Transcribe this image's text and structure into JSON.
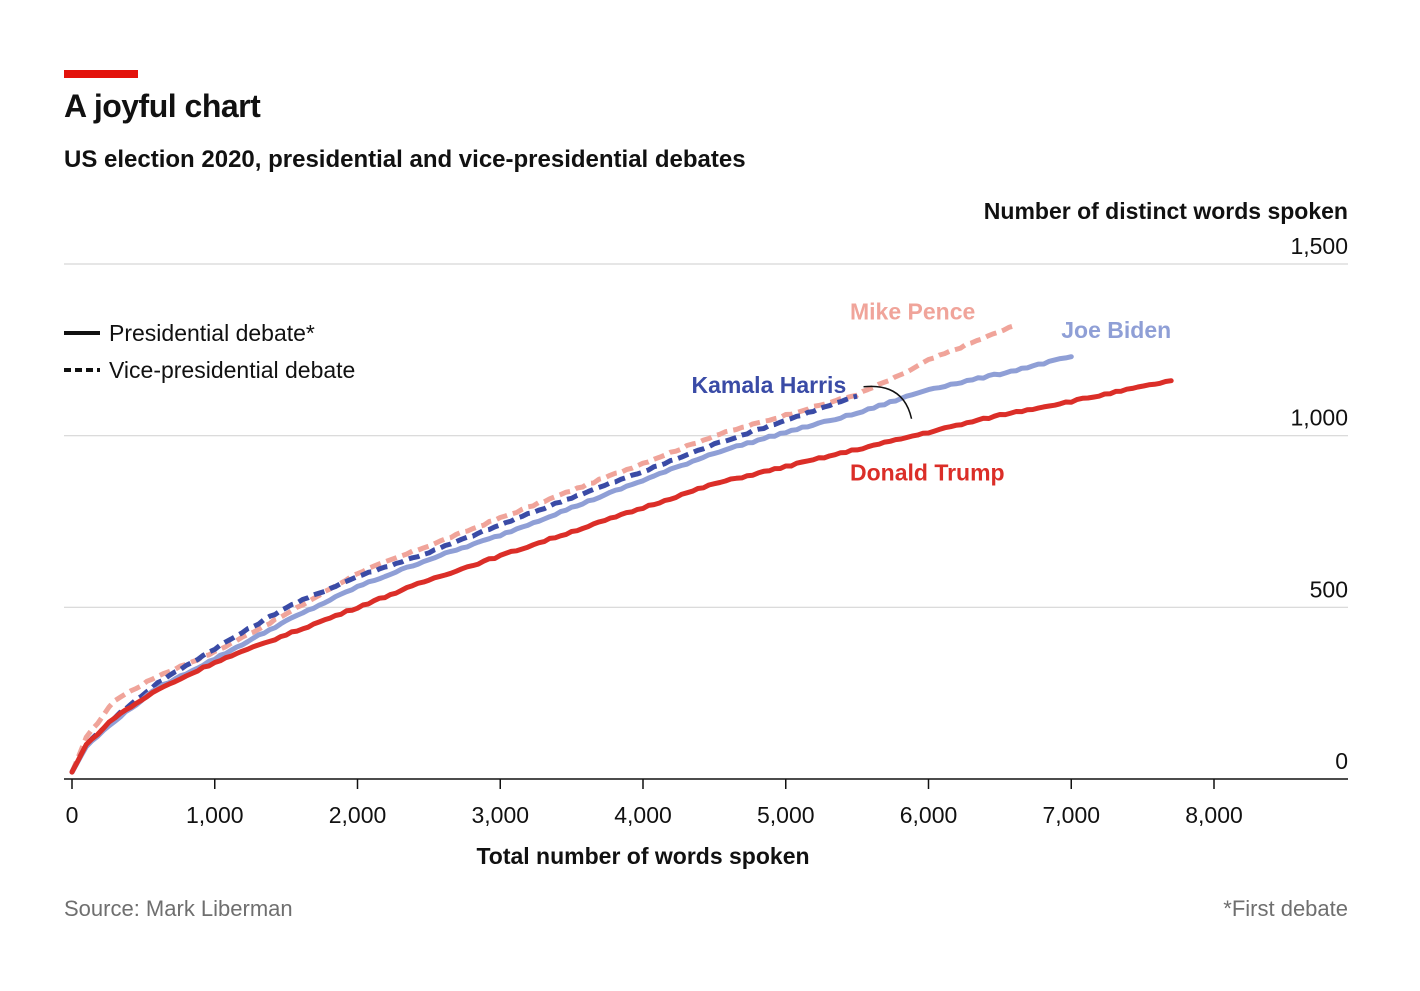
{
  "header": {
    "title": "A joyful chart",
    "subtitle": "US election 2020, presidential and vice-presidential debates"
  },
  "footer": {
    "source": "Source: Mark Liberman",
    "footnote": "*First debate"
  },
  "colors": {
    "accent": "#e3120b",
    "trump": "#db2e28",
    "biden": "#8f9fd6",
    "harris": "#3a4ba6",
    "pence": "#f0a49a",
    "grid": "#d6d6d6",
    "axis": "#111111",
    "text": "#111111"
  },
  "chart_data": {
    "type": "line",
    "title": "A joyful chart",
    "subtitle": "US election 2020, presidential and vice-presidential debates",
    "xlabel": "Total number of words spoken",
    "ylabel": "Number of distinct words spoken",
    "xlim": [
      0,
      8900
    ],
    "ylim": [
      0,
      1500
    ],
    "x_ticks": [
      0,
      1000,
      2000,
      3000,
      4000,
      5000,
      6000,
      7000,
      8000
    ],
    "x_tick_labels": [
      "0",
      "1,000",
      "2,000",
      "3,000",
      "4,000",
      "5,000",
      "6,000",
      "7,000",
      "8,000"
    ],
    "y_ticks": [
      0,
      500,
      1000,
      1500
    ],
    "y_tick_labels": [
      "0",
      "500",
      "1,000",
      "1,500"
    ],
    "grid": "horizontal",
    "legend": {
      "position": "top-left",
      "items": [
        {
          "label": "Presidential debate*",
          "style": "solid"
        },
        {
          "label": "Vice-presidential debate",
          "style": "dashed"
        }
      ]
    },
    "series": [
      {
        "name": "Mike Pence",
        "style": "dashed",
        "color": "#f0a49a",
        "x": [
          0,
          100,
          300,
          600,
          1000,
          1500,
          2000,
          2500,
          3000,
          3500,
          4000,
          4500,
          5000,
          5500,
          5800,
          6000,
          6300,
          6600
        ],
        "y": [
          20,
          120,
          230,
          300,
          370,
          480,
          600,
          680,
          760,
          840,
          920,
          1000,
          1060,
          1120,
          1175,
          1220,
          1270,
          1320
        ]
      },
      {
        "name": "Kamala Harris",
        "style": "dashed",
        "color": "#3a4ba6",
        "x": [
          0,
          100,
          300,
          600,
          1000,
          1500,
          2000,
          2500,
          3000,
          3500,
          4000,
          4500,
          5000,
          5500
        ],
        "y": [
          20,
          100,
          180,
          280,
          380,
          500,
          590,
          660,
          740,
          820,
          895,
          975,
          1045,
          1115
        ]
      },
      {
        "name": "Joe Biden",
        "style": "solid",
        "color": "#8f9fd6",
        "x": [
          0,
          100,
          300,
          600,
          1000,
          1500,
          2000,
          2500,
          3000,
          3500,
          4000,
          4500,
          5000,
          5500,
          6000,
          6500,
          7000
        ],
        "y": [
          20,
          95,
          170,
          265,
          350,
          460,
          560,
          640,
          710,
          790,
          870,
          950,
          1010,
          1065,
          1135,
          1180,
          1230
        ]
      },
      {
        "name": "Donald Trump",
        "style": "solid",
        "color": "#db2e28",
        "x": [
          0,
          100,
          300,
          600,
          1000,
          1500,
          2000,
          2500,
          3000,
          3500,
          4000,
          4500,
          5000,
          5500,
          6000,
          6500,
          7000,
          7700
        ],
        "y": [
          20,
          100,
          180,
          260,
          340,
          420,
          500,
          580,
          650,
          720,
          790,
          860,
          910,
          960,
          1010,
          1060,
          1100,
          1160
        ]
      }
    ],
    "annotations": [
      {
        "series": "Mike Pence",
        "text": "Mike Pence",
        "x": 5450,
        "y": 1338
      },
      {
        "series": "Joe Biden",
        "text": "Joe Biden",
        "x": 6930,
        "y": 1285
      },
      {
        "series": "Kamala Harris",
        "text": "Kamala Harris",
        "x": 4340,
        "y": 1125
      },
      {
        "series": "Donald Trump",
        "text": "Donald Trump",
        "x": 5450,
        "y": 870
      }
    ]
  }
}
